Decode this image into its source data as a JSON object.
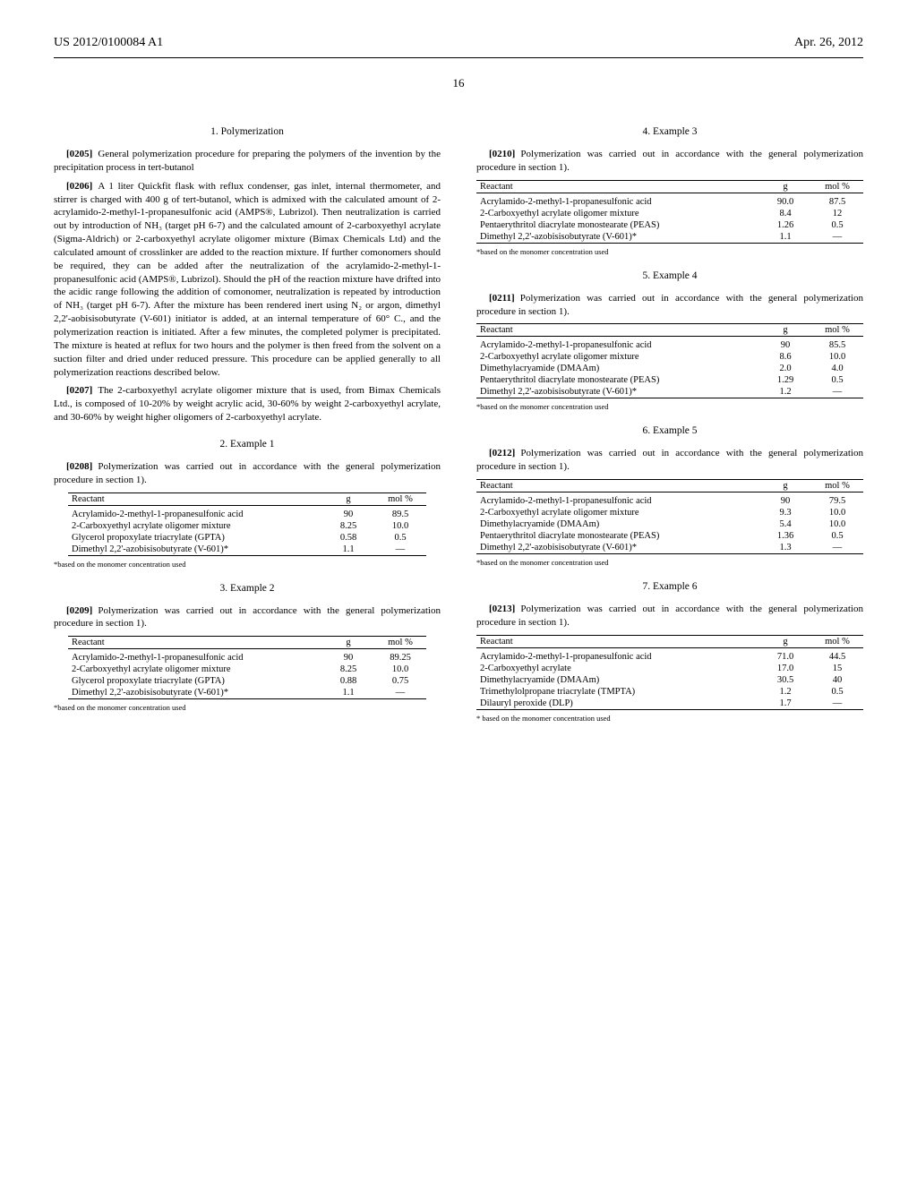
{
  "header": {
    "left": "US 2012/0100084 A1",
    "right": "Apr. 26, 2012"
  },
  "pagenum": "16",
  "sec": {
    "polym_head": "1. Polymerization",
    "ex1_head": "2. Example 1",
    "ex2_head": "3. Example 2",
    "ex3_head": "4. Example 3",
    "ex4_head": "5. Example 4",
    "ex5_head": "6. Example 5",
    "ex6_head": "7. Example 6"
  },
  "para": {
    "p0205_lbl": "[0205]",
    "p0205_txt": "General polymerization procedure for preparing the polymers of the invention by the precipitation process in tert-butanol",
    "p0206_lbl": "[0206]",
    "p0206_txt": "A 1 liter Quickfit flask with reflux condenser, gas inlet, internal thermometer, and stirrer is charged with 400 g of tert-butanol, which is admixed with the calculated amount of 2-acrylamido-2-methyl-1-propanesulfonic acid (AMPS®, Lubrizol). Then neutralization is carried out by introduction of NH₃ (target pH 6-7) and the calculated amount of 2-carboxyethyl acrylate (Sigma-Aldrich) or 2-carboxyethyl acrylate oligomer mixture (Bimax Chemicals Ltd) and the calculated amount of crosslinker are added to the reaction mixture. If further comonomers should be required, they can be added after the neutralization of the acrylamido-2-methyl-1-propanesulfonic acid (AMPS®, Lubrizol). Should the pH of the reaction mixture have drifted into the acidic range following the addition of comonomer, neutralization is repeated by introduction of NH₃ (target pH 6-7). After the mixture has been rendered inert using N₂ or argon, dimethyl 2,2'-aobisisobutyrate (V-601) initiator is added, at an internal temperature of 60° C., and the polymerization reaction is initiated. After a few minutes, the completed polymer is precipitated. The mixture is heated at reflux for two hours and the polymer is then freed from the solvent on a suction filter and dried under reduced pressure. This procedure can be applied generally to all polymerization reactions described below.",
    "p0207_lbl": "[0207]",
    "p0207_txt": "The 2-carboxyethyl acrylate oligomer mixture that is used, from Bimax Chemicals Ltd., is composed of 10-20% by weight acrylic acid, 30-60% by weight 2-carboxyethyl acrylate, and 30-60% by weight higher oligomers of 2-carboxyethyl acrylate.",
    "p0208_lbl": "[0208]",
    "p0208_txt": "Polymerization was carried out in accordance with the general polymerization procedure in section 1).",
    "p0209_lbl": "[0209]",
    "p0209_txt": "Polymerization was carried out in accordance with the general polymerization procedure in section 1).",
    "p0210_lbl": "[0210]",
    "p0210_txt": "Polymerization was carried out in accordance with the general polymerization procedure in section 1).",
    "p0211_lbl": "[0211]",
    "p0211_txt": "Polymerization was carried out in accordance with the general polymerization procedure in section 1).",
    "p0212_lbl": "[0212]",
    "p0212_txt": "Polymerization was carried out in accordance with the general polymerization procedure in section 1).",
    "p0213_lbl": "[0213]",
    "p0213_txt": "Polymerization was carried out in accordance with the general polymerization procedure in section 1)."
  },
  "thead": {
    "c1": "Reactant",
    "c2": "g",
    "c3": "mol %"
  },
  "footnote": "*based on the monomer concentration used",
  "footnote_sp": "* based on the monomer concentration used",
  "t1": {
    "r1": {
      "name": "Acrylamido-2-methyl-1-propanesulfonic acid",
      "g": "90",
      "mol": "89.5"
    },
    "r2": {
      "name": "2-Carboxyethyl acrylate oligomer mixture",
      "g": "8.25",
      "mol": "10.0"
    },
    "r3": {
      "name": "Glycerol propoxylate triacrylate (GPTA)",
      "g": "0.58",
      "mol": "0.5"
    },
    "r4": {
      "name": "Dimethyl 2,2'-azobisisobutyrate (V-601)*",
      "g": "1.1",
      "mol": "—"
    }
  },
  "t2": {
    "r1": {
      "name": "Acrylamido-2-methyl-1-propanesulfonic acid",
      "g": "90",
      "mol": "89.25"
    },
    "r2": {
      "name": "2-Carboxyethyl acrylate oligomer mixture",
      "g": "8.25",
      "mol": "10.0"
    },
    "r3": {
      "name": "Glycerol propoxylate triacrylate (GPTA)",
      "g": "0.88",
      "mol": "0.75"
    },
    "r4": {
      "name": "Dimethyl 2,2'-azobisisobutyrate (V-601)*",
      "g": "1.1",
      "mol": "—"
    }
  },
  "t3": {
    "r1": {
      "name": "Acrylamido-2-methyl-1-propanesulfonic acid",
      "g": "90.0",
      "mol": "87.5"
    },
    "r2": {
      "name": "2-Carboxyethyl acrylate oligomer mixture",
      "g": "8.4",
      "mol": "12"
    },
    "r3": {
      "name": "Pentaerythritol diacrylate monostearate (PEAS)",
      "g": "1.26",
      "mol": "0.5"
    },
    "r4": {
      "name": "Dimethyl 2,2'-azobisisobutyrate (V-601)*",
      "g": "1.1",
      "mol": "—"
    }
  },
  "t4": {
    "r1": {
      "name": "Acrylamido-2-methyl-1-propanesulfonic acid",
      "g": "90",
      "mol": "85.5"
    },
    "r2": {
      "name": "2-Carboxyethyl acrylate oligomer mixture",
      "g": "8.6",
      "mol": "10.0"
    },
    "r3": {
      "name": "Dimethylacryamide (DMAAm)",
      "g": "2.0",
      "mol": "4.0"
    },
    "r4": {
      "name": "Pentaerythritol diacrylate monostearate (PEAS)",
      "g": "1.29",
      "mol": "0.5"
    },
    "r5": {
      "name": "Dimethyl 2,2'-azobisisobutyrate (V-601)*",
      "g": "1.2",
      "mol": "—"
    }
  },
  "t5": {
    "r1": {
      "name": "Acrylamido-2-methyl-1-propanesulfonic acid",
      "g": "90",
      "mol": "79.5"
    },
    "r2": {
      "name": "2-Carboxyethyl acrylate oligomer mixture",
      "g": "9.3",
      "mol": "10.0"
    },
    "r3": {
      "name": "Dimethylacryamide (DMAAm)",
      "g": "5.4",
      "mol": "10.0"
    },
    "r4": {
      "name": "Pentaerythritol diacrylate monostearate (PEAS)",
      "g": "1.36",
      "mol": "0.5"
    },
    "r5": {
      "name": "Dimethyl 2,2'-azobisisobutyrate (V-601)*",
      "g": "1.3",
      "mol": "—"
    }
  },
  "t6": {
    "r1": {
      "name": "Acrylamido-2-methyl-1-propanesulfonic acid",
      "g": "71.0",
      "mol": "44.5"
    },
    "r2": {
      "name": "2-Carboxyethyl acrylate",
      "g": "17.0",
      "mol": "15"
    },
    "r3": {
      "name": "Dimethylacryamide (DMAAm)",
      "g": "30.5",
      "mol": "40"
    },
    "r4": {
      "name": "Trimethylolpropane triacrylate (TMPTA)",
      "g": "1.2",
      "mol": "0.5"
    },
    "r5": {
      "name": "Dilauryl peroxide (DLP)",
      "g": "1.7",
      "mol": "—"
    }
  }
}
